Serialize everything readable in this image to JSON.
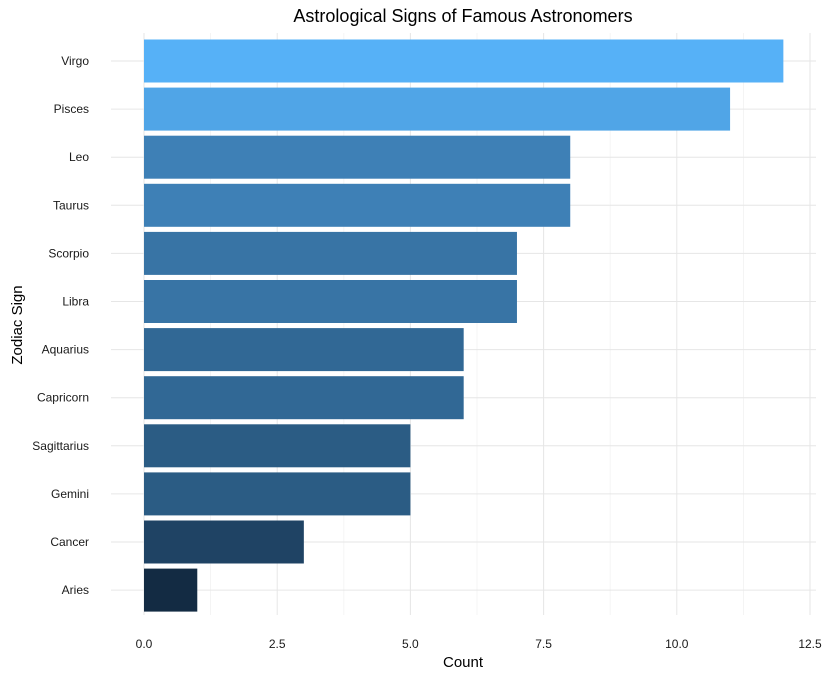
{
  "chart_data": {
    "type": "bar",
    "orientation": "horizontal",
    "title": "Astrological Signs of Famous Astronomers",
    "xlabel": "Count",
    "ylabel": "Zodiac Sign",
    "categories": [
      "Virgo",
      "Pisces",
      "Leo",
      "Taurus",
      "Scorpio",
      "Libra",
      "Aquarius",
      "Capricorn",
      "Sagittarius",
      "Gemini",
      "Cancer",
      "Aries"
    ],
    "values": [
      12,
      11,
      8,
      8,
      7,
      7,
      6,
      6,
      5,
      5,
      3,
      1
    ],
    "xlim": [
      0,
      12.5
    ],
    "x_ticks": [
      0,
      2.5,
      5,
      7.5,
      10,
      12.5
    ],
    "x_tick_labels": [
      "0.0",
      "2.5",
      "5.0",
      "7.5",
      "10.0",
      "12.5"
    ],
    "fill_scale": {
      "type": "continuous",
      "low_color": "#132b43",
      "high_color": "#56b1f7"
    },
    "grid": true,
    "legend": "none"
  }
}
